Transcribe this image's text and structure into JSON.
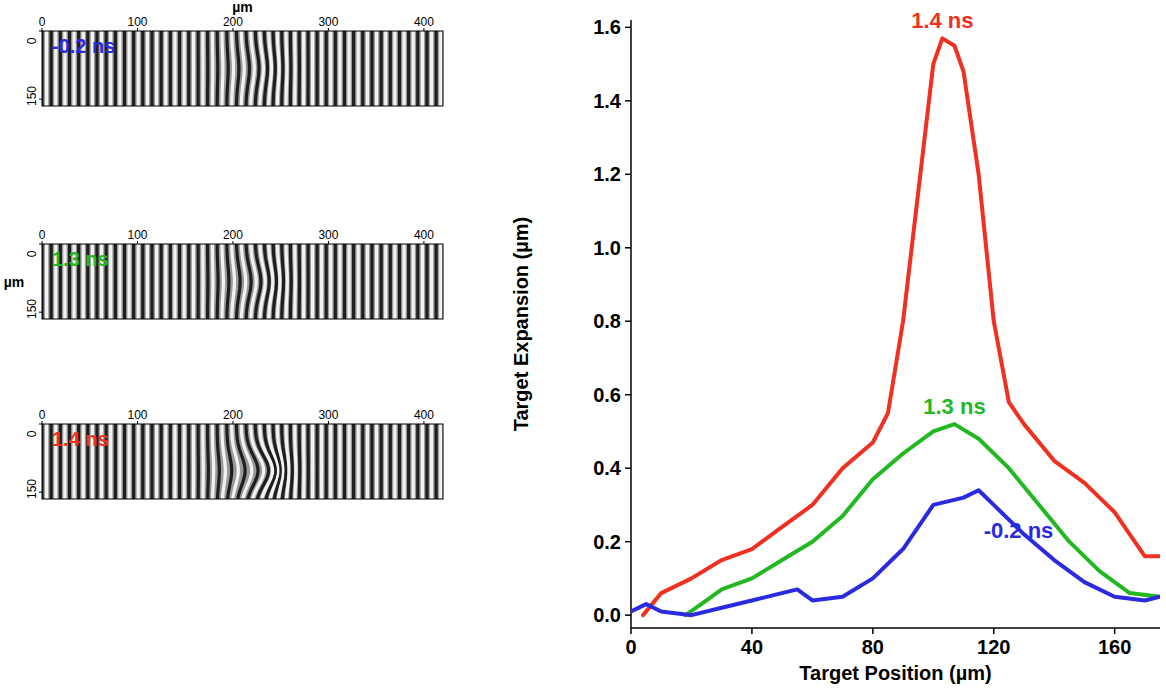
{
  "chart_data": [
    {
      "type": "image",
      "title": "-0.2 ns",
      "color": "#2a2ae0",
      "xlabel": "µm",
      "xlim": [
        0,
        420
      ],
      "xticks": [
        0,
        100,
        200,
        300,
        400
      ],
      "ylim": [
        0,
        165
      ],
      "yticks": [
        0,
        150
      ]
    },
    {
      "type": "image",
      "title": "1.3 ns",
      "color": "#22b822",
      "ylabel": "µm",
      "xlim": [
        0,
        420
      ],
      "xticks": [
        0,
        100,
        200,
        300,
        400
      ],
      "ylim": [
        0,
        165
      ],
      "yticks": [
        0,
        150
      ]
    },
    {
      "type": "image",
      "title": "1.4 ns",
      "color": "#f03020",
      "xlim": [
        0,
        420
      ],
      "xticks": [
        0,
        100,
        200,
        300,
        400
      ],
      "ylim": [
        0,
        165
      ],
      "yticks": [
        0,
        150
      ]
    },
    {
      "type": "line",
      "xlabel": "Target Position (µm)",
      "ylabel": "Target Expansion (µm)",
      "xlim": [
        0,
        175
      ],
      "xticks": [
        0,
        40,
        80,
        120,
        160
      ],
      "ylim": [
        -0.035,
        1.62
      ],
      "yticks": [
        {
          "value": 0,
          "label": "0.0"
        },
        0.2,
        0.4,
        0.6,
        0.8,
        {
          "value": 1,
          "label": "1.0"
        },
        1.2,
        1.4,
        1.6
      ],
      "series": [
        {
          "name": "1.4 ns",
          "color": "#f03020",
          "x": [
            4,
            10,
            20,
            30,
            40,
            50,
            60,
            70,
            80,
            85,
            90,
            95,
            100,
            103,
            107,
            110,
            115,
            120,
            125,
            130,
            140,
            150,
            160,
            170,
            175
          ],
          "values": [
            0.0,
            0.06,
            0.1,
            0.15,
            0.18,
            0.24,
            0.3,
            0.4,
            0.47,
            0.55,
            0.8,
            1.15,
            1.5,
            1.57,
            1.55,
            1.48,
            1.2,
            0.8,
            0.58,
            0.52,
            0.42,
            0.36,
            0.28,
            0.16,
            0.16
          ]
        },
        {
          "name": "1.3 ns",
          "color": "#22b822",
          "x": [
            18,
            25,
            30,
            40,
            50,
            60,
            70,
            80,
            90,
            100,
            107,
            115,
            125,
            135,
            145,
            155,
            165,
            175
          ],
          "values": [
            0.0,
            0.04,
            0.07,
            0.1,
            0.15,
            0.2,
            0.27,
            0.37,
            0.44,
            0.5,
            0.52,
            0.48,
            0.4,
            0.3,
            0.2,
            0.12,
            0.06,
            0.05
          ]
        },
        {
          "name": "-0.2 ns",
          "color": "#2a2ae0",
          "x": [
            0,
            5,
            10,
            20,
            30,
            40,
            55,
            60,
            70,
            80,
            90,
            100,
            110,
            115,
            120,
            130,
            140,
            150,
            160,
            170,
            175
          ],
          "values": [
            0.01,
            0.03,
            0.01,
            0.0,
            0.02,
            0.04,
            0.07,
            0.04,
            0.05,
            0.1,
            0.18,
            0.3,
            0.32,
            0.34,
            0.3,
            0.22,
            0.15,
            0.09,
            0.05,
            0.04,
            0.05
          ]
        }
      ]
    }
  ]
}
